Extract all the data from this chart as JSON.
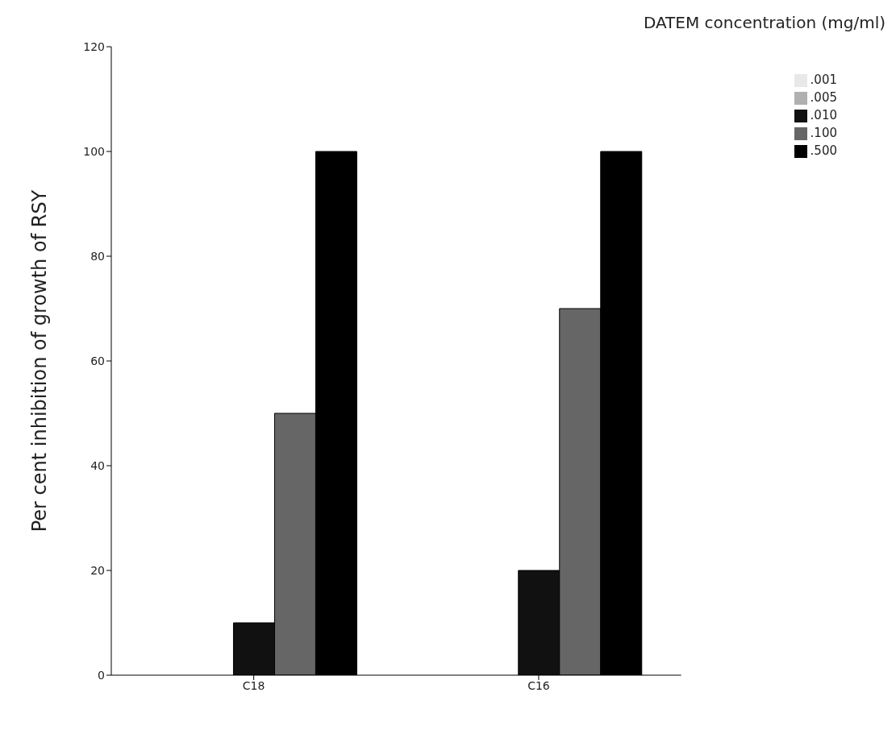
{
  "chart_data": {
    "type": "bar",
    "ylabel": "Per cent inhibition of growth of RSY",
    "legend_title": "DATEM concentration (mg/ml)",
    "categories": [
      "C18",
      "C16"
    ],
    "series": [
      {
        "name": ".001",
        "color": "#e8e8e8",
        "values": [
          0,
          0
        ]
      },
      {
        "name": ".005",
        "color": "#b0b0b0",
        "values": [
          0,
          0
        ]
      },
      {
        "name": ".010",
        "color": "#111111",
        "values": [
          10,
          20
        ]
      },
      {
        "name": ".100",
        "color": "#666666",
        "values": [
          50,
          70
        ]
      },
      {
        "name": ".500",
        "color": "#000000",
        "values": [
          100,
          100
        ]
      }
    ],
    "ylim": [
      0,
      120
    ],
    "yticks": [
      0,
      20,
      40,
      60,
      80,
      100,
      120
    ],
    "grid": false,
    "legend": "top right"
  }
}
